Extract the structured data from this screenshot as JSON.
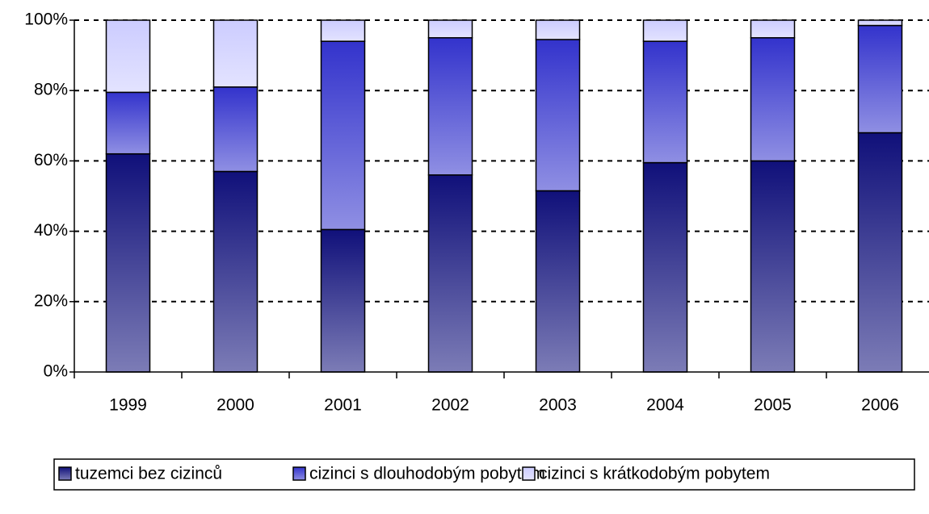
{
  "chart_data": {
    "type": "stacked_bar",
    "categories": [
      "1999",
      "2000",
      "2001",
      "2002",
      "2003",
      "2004",
      "2005",
      "2006"
    ],
    "series": [
      {
        "name": "tuzemci bez cizinců",
        "color": "#10107a",
        "values": [
          62,
          57,
          40.5,
          56,
          51.5,
          59.5,
          60,
          68
        ]
      },
      {
        "name": "cizinci  s dlouhodobým pobytem",
        "color": "#3333cc",
        "values": [
          17.5,
          24,
          53.5,
          39,
          43,
          34.5,
          35,
          30.5
        ]
      },
      {
        "name": "cizinci  s krátkodobým pobytem",
        "color": "#ccccff",
        "values": [
          20.5,
          19,
          6,
          5,
          5.5,
          6,
          5,
          1.5
        ]
      }
    ],
    "ylim": [
      0,
      100
    ],
    "yticks": [
      {
        "value": 0,
        "label": "0%"
      },
      {
        "value": 20,
        "label": "20%"
      },
      {
        "value": 40,
        "label": "40%"
      },
      {
        "value": 60,
        "label": "60%"
      },
      {
        "value": 80,
        "label": "80%"
      },
      {
        "value": 100,
        "label": "100%"
      }
    ],
    "grid": true,
    "legend": "bottom"
  }
}
